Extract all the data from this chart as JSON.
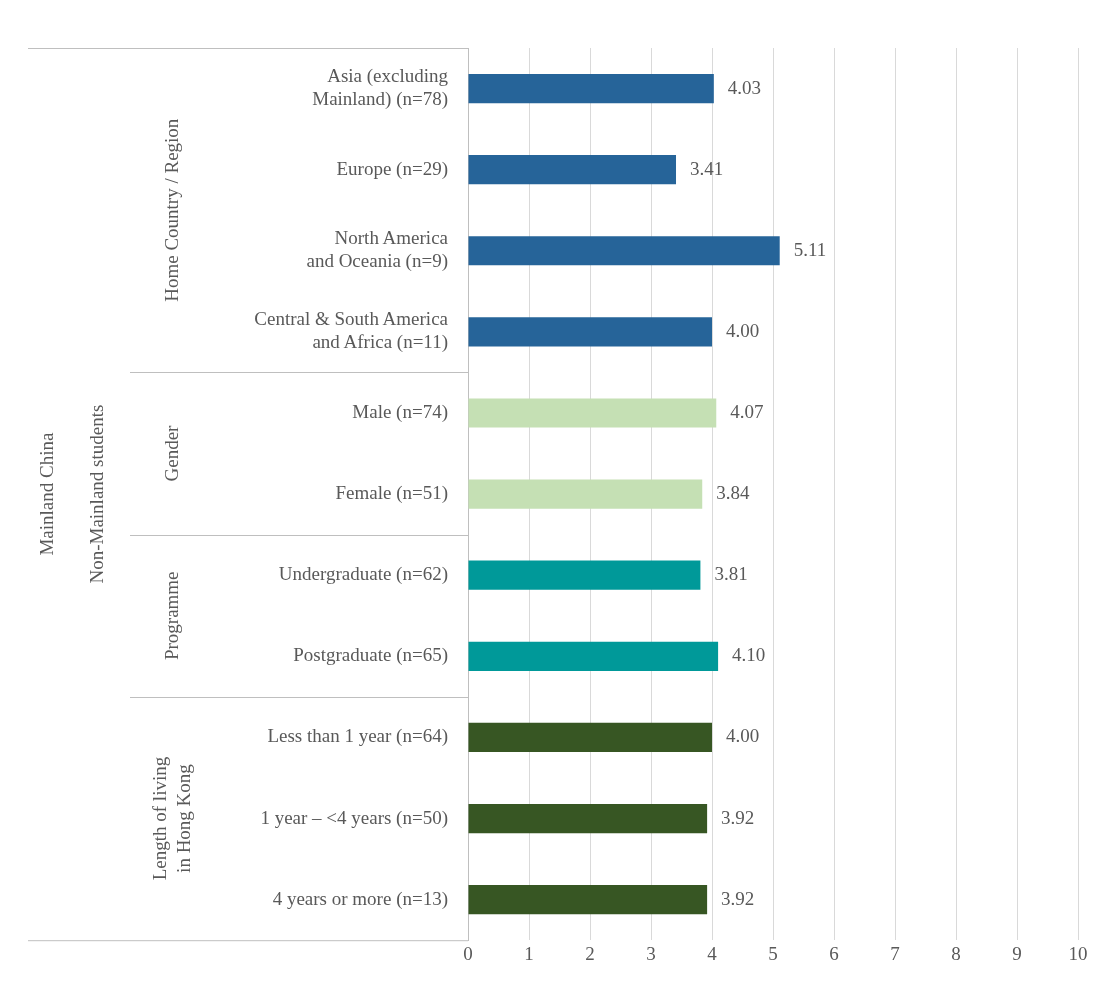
{
  "chart_data": {
    "type": "bar",
    "orientation": "horizontal",
    "categories": [
      "Asia (excluding\nMainland) (n=78)",
      "Europe (n=29)",
      "North America\nand Oceania (n=9)",
      "Central & South America\nand Africa (n=11)",
      "Male (n=74)",
      "Female (n=51)",
      "Undergraduate (n=62)",
      "Postgraduate (n=65)",
      "Less than 1 year (n=64)",
      "1 year – <4 years (n=50)",
      "4 years or more (n=13)"
    ],
    "values": [
      4.03,
      3.41,
      5.11,
      4.0,
      4.07,
      3.84,
      3.81,
      4.1,
      4.0,
      3.92,
      3.92
    ],
    "value_labels": [
      "4.03",
      "3.41",
      "5.11",
      "4.00",
      "4.07",
      "3.84",
      "3.81",
      "4.10",
      "4.00",
      "3.92",
      "3.92"
    ],
    "colors": [
      "#266499",
      "#266499",
      "#266499",
      "#266499",
      "#c5e0b4",
      "#c5e0b4",
      "#009999",
      "#009999",
      "#375623",
      "#375623",
      "#375623"
    ],
    "annotations": [
      "Mainland China",
      "Non-Mainland students",
      "Home Country / Region",
      "Gender",
      "Programme",
      "Length of living\nin Hong Kong"
    ],
    "xlim": [
      0,
      10
    ],
    "xticks": [
      0,
      1,
      2,
      3,
      4,
      5,
      6,
      7,
      8,
      9,
      10
    ],
    "grid": "x",
    "legend": false
  }
}
